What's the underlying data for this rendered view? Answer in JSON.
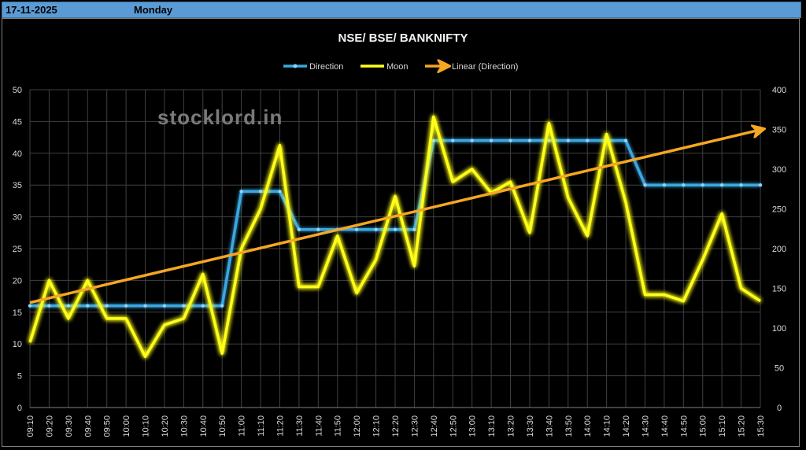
{
  "header": {
    "date": "17-11-2025",
    "day": "Monday"
  },
  "chart_data": {
    "type": "line",
    "title": "NSE/ BSE/ BANKNIFTY",
    "watermark": "stocklord.in",
    "categories": [
      "09:10",
      "09:20",
      "09:30",
      "09:40",
      "09:50",
      "10:00",
      "10:10",
      "10:20",
      "10:30",
      "10:40",
      "10:50",
      "11:00",
      "11:10",
      "11:20",
      "11:30",
      "11:40",
      "11:50",
      "12:00",
      "12:10",
      "12:20",
      "12:30",
      "12:40",
      "12:50",
      "13:00",
      "13:10",
      "13:20",
      "13:30",
      "13:40",
      "13:50",
      "14:00",
      "14:10",
      "14:20",
      "14:30",
      "14:40",
      "14:50",
      "15:00",
      "15:10",
      "15:20",
      "15:30"
    ],
    "y_left": {
      "ticks": [
        "0",
        "5",
        "10",
        "15",
        "20",
        "25",
        "30",
        "35",
        "40",
        "45",
        "50"
      ],
      "range": [
        0,
        50
      ]
    },
    "y_right": {
      "ticks": [
        "0",
        "50",
        "100",
        "150",
        "200",
        "250",
        "300",
        "350",
        "400"
      ],
      "range": [
        0,
        400
      ]
    },
    "grid": true,
    "legend_position": "top",
    "series": [
      {
        "name": "Direction",
        "axis": "left",
        "color": "#3ba7e0",
        "values": [
          16,
          16,
          16,
          16,
          16,
          16,
          16,
          16,
          16,
          16,
          16,
          34,
          34,
          34,
          28,
          28,
          28,
          28,
          28,
          28,
          28,
          42,
          42,
          42,
          42,
          42,
          42,
          42,
          42,
          42,
          42,
          42,
          35,
          35,
          35,
          35,
          35,
          35,
          35
        ]
      },
      {
        "name": "Moon",
        "axis": "right",
        "color": "#ffff1a",
        "values": [
          82,
          160,
          112,
          160,
          112,
          112,
          64,
          104,
          112,
          168,
          68,
          200,
          250,
          330,
          152,
          152,
          216,
          144,
          186,
          266,
          178,
          366,
          284,
          300,
          270,
          284,
          220,
          358,
          264,
          216,
          344,
          258,
          142,
          142,
          134,
          186,
          244,
          150,
          134
        ]
      },
      {
        "name": "Linear (Direction)",
        "axis": "left",
        "color": "#f5a623",
        "trendline": true,
        "start": 16.5,
        "end": 43.7
      }
    ]
  }
}
